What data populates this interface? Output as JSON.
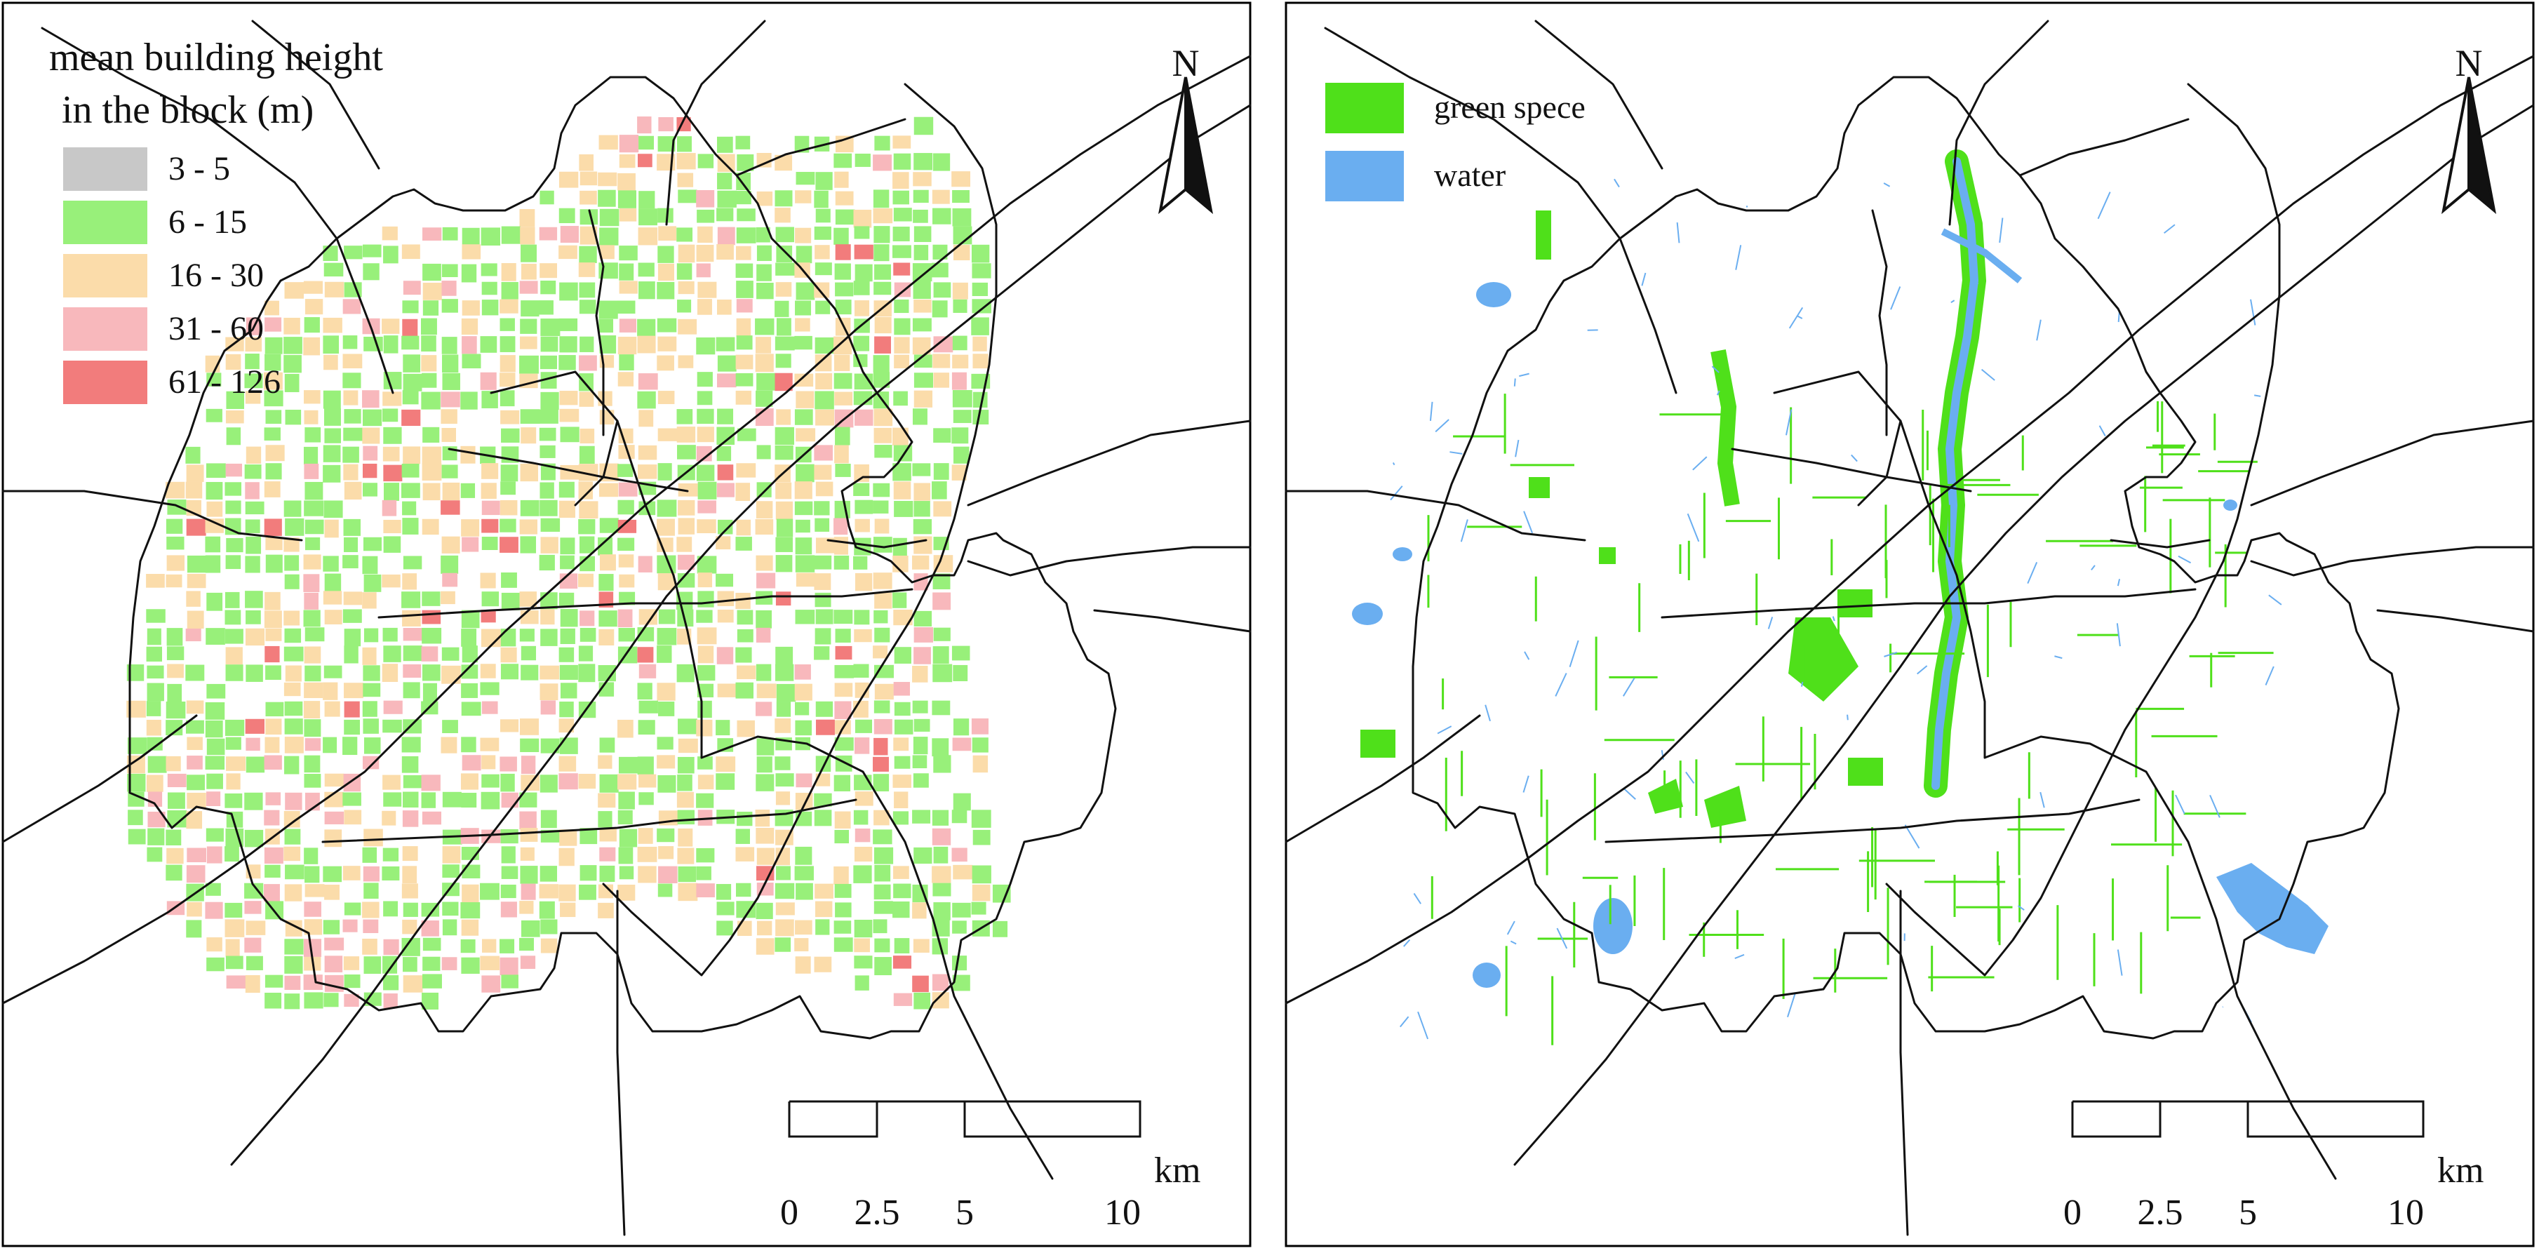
{
  "left_map": {
    "legend_title_line1": "mean building height",
    "legend_title_line2": "in the block (m)",
    "legend_items": [
      {
        "label": "3 - 5",
        "color": "#c8c8c8"
      },
      {
        "label": "6 - 15",
        "color": "#98f07a"
      },
      {
        "label": "16 - 30",
        "color": "#fbdcaa"
      },
      {
        "label": "31 - 60",
        "color": "#f8b8bc"
      },
      {
        "label": "61 - 126",
        "color": "#f27c7c"
      }
    ],
    "north_label": "N",
    "scale": {
      "unit": "km",
      "ticks": [
        "0",
        "2.5",
        "5",
        "10"
      ]
    }
  },
  "right_map": {
    "legend_items": [
      {
        "label": "green spece",
        "color": "#4fe01a"
      },
      {
        "label": "water",
        "color": "#6aaef0"
      }
    ],
    "north_label": "N",
    "scale": {
      "unit": "km",
      "ticks": [
        "0",
        "2.5",
        "5",
        "10"
      ]
    }
  }
}
